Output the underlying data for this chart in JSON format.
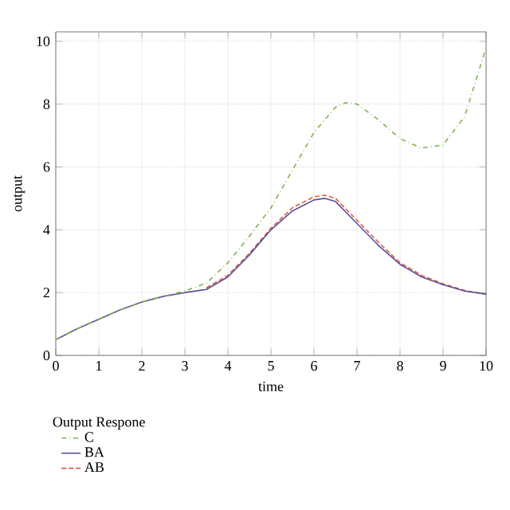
{
  "chart_data": {
    "type": "line",
    "xlabel": "time",
    "ylabel": "output",
    "legend_title": "Output Respone",
    "xlim": [
      0,
      10
    ],
    "ylim": [
      0,
      10.3
    ],
    "xticks": [
      0,
      1,
      2,
      3,
      4,
      5,
      6,
      7,
      8,
      9,
      10
    ],
    "yticks": [
      0,
      2,
      4,
      6,
      8,
      10
    ],
    "grid": true,
    "legend": "bottom",
    "marker": "none",
    "series": [
      {
        "name": "C",
        "color": "#7fb34a",
        "line_style": "dashdot",
        "x": [
          0,
          0.5,
          1,
          1.5,
          2,
          2.5,
          3,
          3.5,
          4,
          4.5,
          5,
          5.5,
          6,
          6.5,
          6.75,
          7,
          7.5,
          8,
          8.5,
          9,
          9.5,
          10
        ],
        "values": [
          0.5,
          0.85,
          1.15,
          1.45,
          1.7,
          1.88,
          2.05,
          2.3,
          2.95,
          3.8,
          4.7,
          5.9,
          7.1,
          7.9,
          8.05,
          8.0,
          7.5,
          6.9,
          6.6,
          6.7,
          7.6,
          9.8
        ]
      },
      {
        "name": "BA",
        "color": "#5b4f9b",
        "line_style": "solid",
        "x": [
          0,
          0.5,
          1,
          1.5,
          2,
          2.5,
          3,
          3.5,
          4,
          4.5,
          5,
          5.5,
          6,
          6.25,
          6.5,
          7,
          7.5,
          8,
          8.5,
          9,
          9.5,
          10
        ],
        "values": [
          0.5,
          0.85,
          1.15,
          1.45,
          1.7,
          1.88,
          2.0,
          2.1,
          2.5,
          3.2,
          4.0,
          4.6,
          4.95,
          5.0,
          4.9,
          4.2,
          3.5,
          2.9,
          2.5,
          2.25,
          2.05,
          1.95
        ]
      },
      {
        "name": "AB",
        "color": "#d9603b",
        "line_style": "dashed",
        "x": [
          3.5,
          4,
          4.5,
          5,
          5.5,
          6,
          6.25,
          6.5,
          7,
          7.5,
          8,
          8.5,
          9,
          9.5,
          10
        ],
        "values": [
          2.15,
          2.55,
          3.25,
          4.05,
          4.7,
          5.05,
          5.1,
          5.0,
          4.3,
          3.6,
          2.95,
          2.55,
          2.28,
          2.07,
          1.95
        ]
      }
    ]
  }
}
